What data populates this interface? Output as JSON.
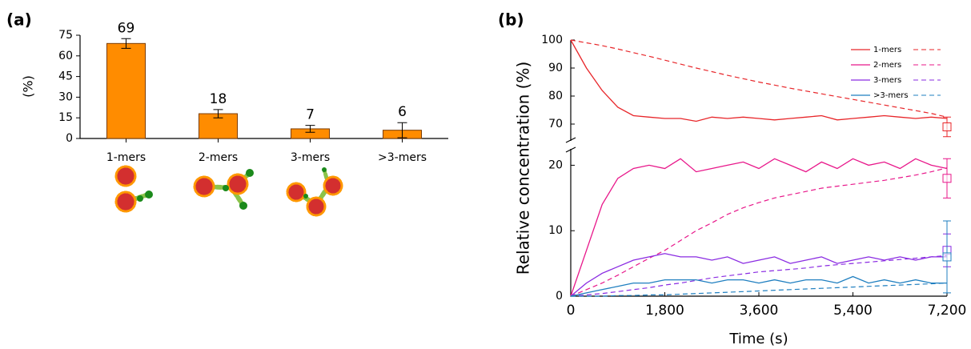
{
  "chart_data": [
    {
      "type": "bar",
      "panel_label": "(a)",
      "ylabel": "(%)",
      "categories": [
        "1-mers",
        "2-mers",
        "3-mers",
        ">3-mers"
      ],
      "values": [
        69,
        18,
        7,
        6
      ],
      "errors": [
        3.5,
        3,
        2.5,
        5.5
      ],
      "color": "#ff8c00",
      "ylim": [
        0,
        75
      ],
      "yticks": [
        0,
        15,
        30,
        45,
        60,
        75
      ],
      "grid": false
    },
    {
      "type": "line",
      "panel_label": "(b)",
      "xlabel": "Time (s)",
      "ylabel": "Relative concentration (%)",
      "x": [
        0,
        300,
        600,
        900,
        1200,
        1500,
        1800,
        2100,
        2400,
        2700,
        3000,
        3300,
        3600,
        3900,
        4200,
        4500,
        4800,
        5100,
        5400,
        5700,
        6000,
        6300,
        6600,
        6900,
        7200
      ],
      "xlim": [
        0,
        7200
      ],
      "xticks": [
        0,
        {
          "value": 1800,
          "label": "1,800"
        },
        {
          "value": 3600,
          "label": "3,600"
        },
        {
          "value": 5400,
          "label": "5,400"
        },
        {
          "value": 7200,
          "label": "7,200"
        }
      ],
      "ylim": [
        0,
        100
      ],
      "axis_break": [
        22.5,
        64
      ],
      "yticks": [
        0,
        10,
        20,
        70,
        80,
        90,
        100
      ],
      "legend": "upper right",
      "grid": false,
      "series": [
        {
          "name": "1-mers",
          "color": "#e8262a",
          "values": [
            100,
            90,
            82,
            76,
            73,
            72.5,
            72,
            72,
            71,
            72.5,
            72,
            72.5,
            72,
            71.5,
            72,
            72.5,
            73,
            71.5,
            72,
            72.5,
            73,
            72.5,
            72,
            72.5,
            72
          ],
          "dashed_values": [
            100,
            99,
            98,
            96.8,
            95.5,
            94.2,
            92.8,
            91.4,
            90,
            88.7,
            87.4,
            86.2,
            85,
            83.9,
            82.8,
            81.8,
            80.8,
            79.8,
            78.8,
            77.8,
            76.8,
            75.8,
            74.8,
            73.8,
            72.5
          ],
          "end_value": 69,
          "end_error": 3.5
        },
        {
          "name": "2-mers",
          "color": "#e8178a",
          "values": [
            0,
            7,
            14,
            18,
            19.5,
            20,
            19.5,
            21,
            19,
            19.5,
            20,
            20.5,
            19.5,
            21,
            20,
            19,
            20.5,
            19.5,
            21,
            20,
            20.5,
            19.5,
            21,
            20,
            19.5
          ],
          "dashed_values": [
            0,
            1,
            2,
            3.2,
            4.5,
            5.8,
            7,
            8.5,
            10,
            11.2,
            12.5,
            13.5,
            14.3,
            15,
            15.5,
            16,
            16.5,
            16.8,
            17.1,
            17.4,
            17.7,
            18.1,
            18.5,
            19,
            19.6
          ],
          "end_value": 18,
          "end_error": 3
        },
        {
          "name": "3-mers",
          "color": "#8a2be2",
          "values": [
            0,
            2,
            3.5,
            4.5,
            5.5,
            6,
            6.5,
            6,
            6,
            5.5,
            6,
            5,
            5.5,
            6,
            5,
            5.5,
            6,
            5,
            5.5,
            6,
            5.5,
            6,
            5.5,
            6,
            6
          ],
          "dashed_values": [
            0,
            0.2,
            0.4,
            0.7,
            1,
            1.3,
            1.7,
            2,
            2.4,
            2.8,
            3.1,
            3.4,
            3.7,
            3.9,
            4.1,
            4.3,
            4.6,
            4.8,
            5,
            5.2,
            5.4,
            5.6,
            5.8,
            6,
            6.2
          ],
          "end_value": 7,
          "end_error": 2.5
        },
        {
          "name": ">3-mers",
          "color": "#1f7fc0",
          "values": [
            0,
            0.5,
            1,
            1.5,
            2,
            2,
            2.5,
            2.5,
            2.5,
            2,
            2.5,
            2.5,
            2,
            2.5,
            2,
            2.5,
            2.5,
            2,
            3,
            2,
            2.5,
            2,
            2.5,
            2,
            2
          ],
          "dashed_values": [
            0,
            0,
            0,
            0.1,
            0.1,
            0.2,
            0.2,
            0.3,
            0.4,
            0.5,
            0.6,
            0.7,
            0.8,
            0.9,
            1,
            1.1,
            1.2,
            1.3,
            1.4,
            1.5,
            1.6,
            1.7,
            1.8,
            1.9,
            2
          ],
          "end_value": 6,
          "end_error": 5.5
        }
      ]
    }
  ]
}
